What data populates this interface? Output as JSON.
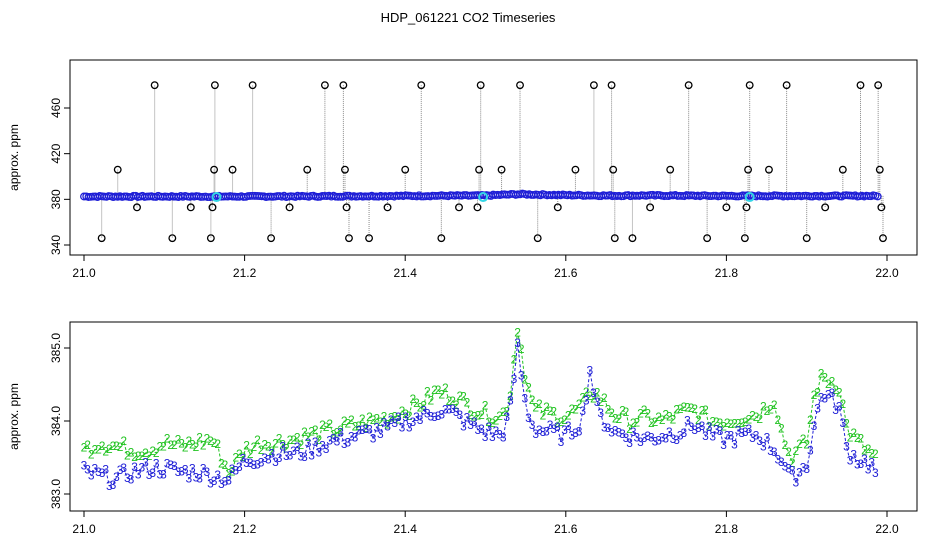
{
  "title": "HDP_061221  CO2 Timeseries",
  "colors": {
    "blue": "#1f1fd6",
    "green": "#22c322",
    "black": "#000000",
    "cyan": "#33d6e6",
    "grey": "#8a8a8a"
  },
  "chart_data": [
    {
      "type": "scatter",
      "ylabel": "approx. ppm",
      "xlim": [
        21.0,
        22.0
      ],
      "ylim": [
        340,
        480
      ],
      "x_ticks": [
        "21.0",
        "21.2",
        "21.4",
        "21.6",
        "21.8",
        "22.0"
      ],
      "y_ticks": [
        "340",
        "380",
        "420",
        "460"
      ],
      "series": [
        {
          "style": "blue-baseline",
          "x": [
            21.0,
            21.1,
            21.2,
            21.3,
            21.4,
            21.5,
            21.54,
            21.6,
            21.66,
            21.7,
            21.8,
            21.9,
            21.99
          ],
          "y": [
            382.5,
            382.5,
            382.5,
            382.7,
            383.0,
            383.3,
            384.5,
            383.7,
            383.2,
            383.4,
            383.0,
            383.0,
            383.0
          ]
        },
        {
          "style": "black-outliers",
          "x": [
            21.022,
            21.042,
            21.066,
            21.088,
            21.11,
            21.133,
            21.158,
            21.16,
            21.162,
            21.163,
            21.185,
            21.21,
            21.233,
            21.256,
            21.278,
            21.3,
            21.323,
            21.325,
            21.327,
            21.33,
            21.355,
            21.378,
            21.4,
            21.42,
            21.445,
            21.467,
            21.49,
            21.492,
            21.494,
            21.52,
            21.543,
            21.565,
            21.59,
            21.612,
            21.635,
            21.657,
            21.659,
            21.661,
            21.683,
            21.705,
            21.73,
            21.753,
            21.776,
            21.8,
            21.823,
            21.825,
            21.827,
            21.829,
            21.853,
            21.875,
            21.9,
            21.923,
            21.945,
            21.967,
            21.989,
            21.991,
            21.993,
            21.995
          ],
          "y": [
            346,
            406,
            373,
            480,
            346,
            373,
            346,
            373,
            406,
            480,
            406,
            480,
            346,
            373,
            406,
            480,
            480,
            406,
            373,
            346,
            346,
            373,
            406,
            480,
            346,
            373,
            373,
            406,
            480,
            406,
            480,
            346,
            373,
            406,
            480,
            480,
            406,
            346,
            346,
            373,
            406,
            480,
            346,
            373,
            346,
            373,
            406,
            480,
            406,
            480,
            346,
            373,
            406,
            480,
            480,
            406,
            373,
            346
          ]
        },
        {
          "style": "cyan-markers",
          "x": [
            21.165,
            21.497,
            21.829
          ],
          "y": [
            382,
            382,
            382
          ]
        }
      ]
    },
    {
      "type": "line",
      "ylabel": "approx. ppm",
      "xlim": [
        21.0,
        22.0
      ],
      "ylim": [
        383.0,
        385.0
      ],
      "x_ticks": [
        "21.0",
        "21.2",
        "21.4",
        "21.6",
        "21.8",
        "22.0"
      ],
      "y_ticks": [
        "383.0",
        "384.0",
        "385.0"
      ],
      "point_labels": {
        "series_2": "2",
        "series_3": "3"
      },
      "series": [
        {
          "name": "2",
          "x": [
            21.0,
            21.02,
            21.04,
            21.06,
            21.08,
            21.1,
            21.12,
            21.14,
            21.16,
            21.18,
            21.2,
            21.22,
            21.24,
            21.26,
            21.28,
            21.3,
            21.32,
            21.34,
            21.36,
            21.38,
            21.4,
            21.42,
            21.44,
            21.46,
            21.48,
            21.5,
            21.52,
            21.53,
            21.54,
            21.55,
            21.56,
            21.58,
            21.6,
            21.62,
            21.63,
            21.64,
            21.66,
            21.68,
            21.7,
            21.72,
            21.74,
            21.76,
            21.78,
            21.8,
            21.82,
            21.84,
            21.86,
            21.87,
            21.88,
            21.9,
            21.91,
            21.92,
            21.94,
            21.95,
            21.96,
            21.98,
            21.99
          ],
          "y": [
            383.6,
            383.7,
            383.65,
            383.6,
            383.6,
            383.7,
            383.65,
            383.7,
            383.75,
            383.3,
            383.6,
            383.7,
            383.7,
            383.75,
            383.8,
            383.85,
            383.9,
            383.95,
            384.0,
            384.05,
            384.15,
            384.25,
            384.4,
            384.35,
            384.2,
            384.1,
            384.05,
            384.3,
            385.3,
            384.6,
            384.15,
            384.1,
            384.05,
            384.2,
            384.4,
            384.35,
            384.1,
            384.0,
            384.05,
            384.0,
            384.1,
            384.15,
            384.0,
            384.0,
            384.05,
            384.1,
            384.3,
            383.8,
            383.5,
            383.7,
            384.4,
            384.6,
            384.5,
            383.9,
            383.75,
            383.55,
            383.45
          ]
        },
        {
          "name": "3",
          "x": [
            21.0,
            21.02,
            21.04,
            21.06,
            21.08,
            21.1,
            21.12,
            21.14,
            21.16,
            21.18,
            21.2,
            21.22,
            21.24,
            21.26,
            21.28,
            21.3,
            21.32,
            21.34,
            21.36,
            21.38,
            21.4,
            21.42,
            21.44,
            21.46,
            21.48,
            21.5,
            21.52,
            21.53,
            21.54,
            21.55,
            21.56,
            21.58,
            21.6,
            21.62,
            21.63,
            21.64,
            21.66,
            21.68,
            21.7,
            21.72,
            21.74,
            21.76,
            21.78,
            21.8,
            21.82,
            21.84,
            21.86,
            21.87,
            21.88,
            21.9,
            21.91,
            21.92,
            21.94,
            21.95,
            21.96,
            21.98,
            21.99
          ],
          "y": [
            383.3,
            383.25,
            383.2,
            383.3,
            383.35,
            383.35,
            383.3,
            383.3,
            383.25,
            383.2,
            383.45,
            383.5,
            383.55,
            383.55,
            383.6,
            383.7,
            383.75,
            383.8,
            383.85,
            383.9,
            384.0,
            384.05,
            384.15,
            384.1,
            383.95,
            383.85,
            383.8,
            384.1,
            385.0,
            384.2,
            383.9,
            383.85,
            383.8,
            384.0,
            384.7,
            384.1,
            383.85,
            383.8,
            383.75,
            383.8,
            383.85,
            383.95,
            383.8,
            383.75,
            383.8,
            383.8,
            383.6,
            383.45,
            383.2,
            383.4,
            384.0,
            384.4,
            384.2,
            383.6,
            383.5,
            383.4,
            383.2
          ]
        }
      ]
    }
  ]
}
